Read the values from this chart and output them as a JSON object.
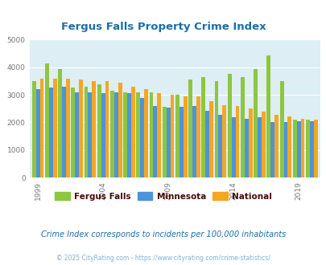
{
  "title": "Fergus Falls Property Crime Index",
  "years": [
    1999,
    2000,
    2001,
    2002,
    2003,
    2004,
    2005,
    2006,
    2007,
    2008,
    2009,
    2010,
    2011,
    2012,
    2013,
    2014,
    2015,
    2016,
    2017,
    2018,
    2019,
    2020
  ],
  "fergus_falls": [
    3500,
    4150,
    3950,
    3280,
    3300,
    3380,
    3150,
    3100,
    3100,
    3100,
    2580,
    3000,
    3550,
    3650,
    3500,
    3750,
    3650,
    3950,
    4420,
    3500,
    2100,
    2100
  ],
  "minnesota": [
    3200,
    3280,
    3300,
    3100,
    3080,
    3050,
    3080,
    3050,
    2900,
    2600,
    2550,
    2560,
    2600,
    2420,
    2280,
    2200,
    2120,
    2180,
    2020,
    2000,
    2050,
    2050
  ],
  "national": [
    3600,
    3600,
    3580,
    3570,
    3500,
    3500,
    3430,
    3310,
    3210,
    3050,
    2990,
    2960,
    2960,
    2760,
    2630,
    2590,
    2500,
    2380,
    2270,
    2210,
    2120,
    2100
  ],
  "colors": {
    "fergus_falls": "#8dc63f",
    "minnesota": "#4d93d9",
    "national": "#f5a623"
  },
  "ylim": [
    0,
    5000
  ],
  "yticks": [
    0,
    1000,
    2000,
    3000,
    4000,
    5000
  ],
  "xlabel_ticks": [
    1999,
    2004,
    2009,
    2014,
    2019
  ],
  "bg_color": "#ddeef4",
  "subtitle": "Crime Index corresponds to incidents per 100,000 inhabitants",
  "footer": "© 2025 CityRating.com - https://www.cityrating.com/crime-statistics/",
  "legend_labels": [
    "Fergus Falls",
    "Minnesota",
    "National"
  ],
  "title_color": "#1a6fa8",
  "subtitle_color": "#1a6fa8",
  "footer_color": "#7fb3d3",
  "legend_label_color": "#4a0a0a"
}
